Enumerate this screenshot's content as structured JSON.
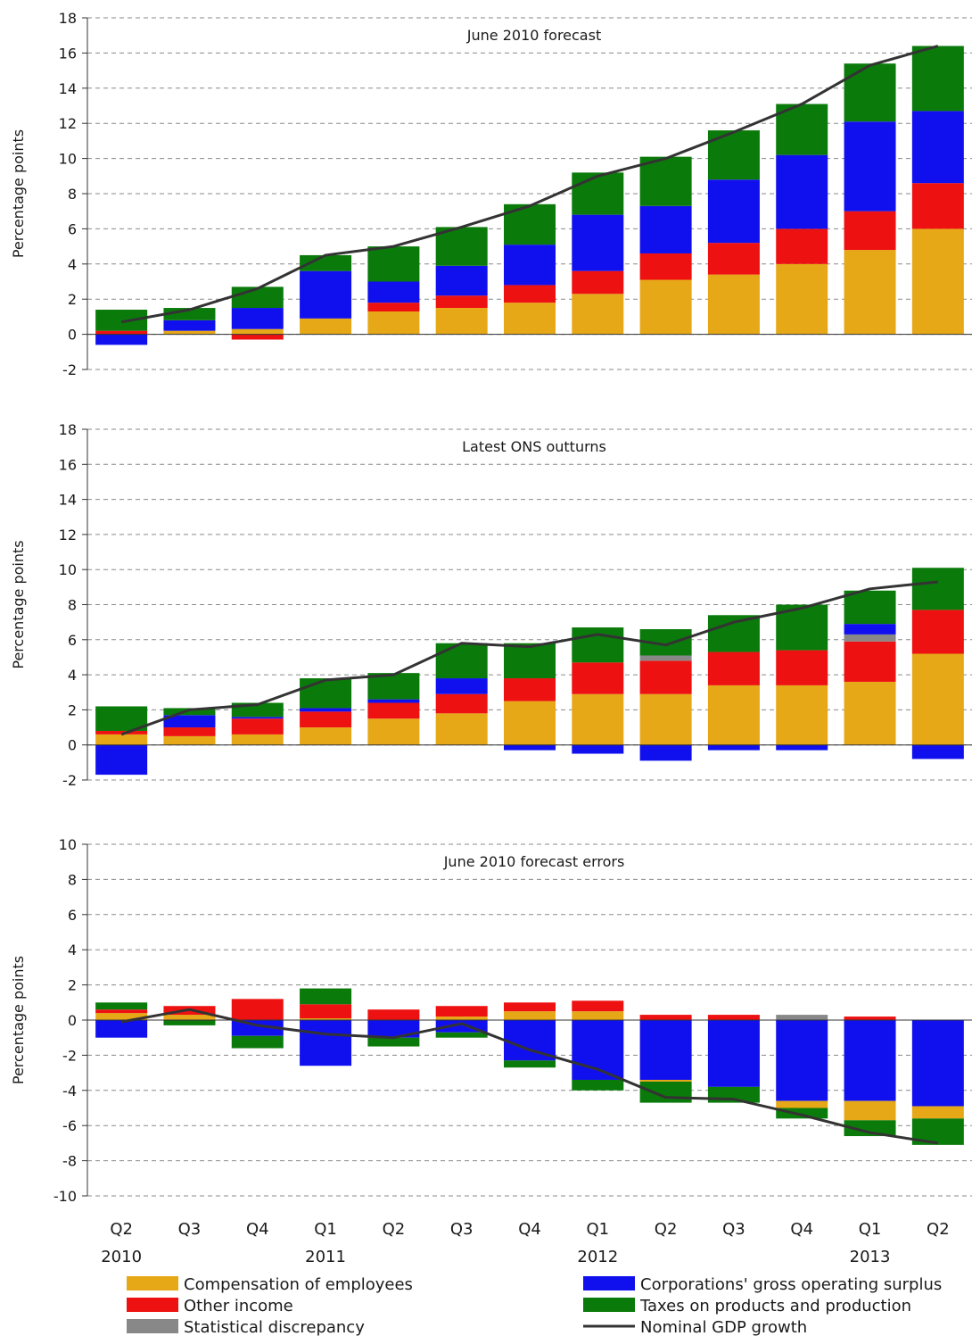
{
  "series_meta": [
    {
      "key": "comp",
      "name": "Compensation of employees",
      "color": "#E6A817"
    },
    {
      "key": "other",
      "name": "Other income",
      "color": "#EE1111"
    },
    {
      "key": "stat",
      "name": "Statistical discrepancy",
      "color": "#888888"
    },
    {
      "key": "corp",
      "name": "Corporations' gross operating surplus",
      "color": "#1010EE"
    },
    {
      "key": "tax",
      "name": "Taxes on products and production",
      "color": "#0A7A0A"
    },
    {
      "key": "gdp",
      "name": "Nominal GDP growth",
      "color": "#333333"
    }
  ],
  "chart_data": [
    {
      "type": "bar",
      "stacked": true,
      "title": "June 2010 forecast",
      "ylabel": "Percentage points",
      "ylim": [
        -2,
        18
      ],
      "yticks": [
        -2,
        0,
        2,
        4,
        6,
        8,
        10,
        12,
        14,
        16,
        18
      ],
      "categories": [
        "Q2 2010",
        "Q3 2010",
        "Q4 2010",
        "Q1 2011",
        "Q2 2011",
        "Q3 2011",
        "Q4 2011",
        "Q1 2012",
        "Q2 2012",
        "Q3 2012",
        "Q4 2012",
        "Q1 2013",
        "Q2 2013"
      ],
      "series": [
        {
          "name": "Compensation of employees",
          "values": [
            0.0,
            0.2,
            0.3,
            0.9,
            1.3,
            1.5,
            1.8,
            2.3,
            3.1,
            3.4,
            4.0,
            4.8,
            6.0
          ]
        },
        {
          "name": "Other income",
          "values": [
            0.2,
            0.0,
            -0.3,
            0.0,
            0.5,
            0.7,
            1.0,
            1.3,
            1.5,
            1.8,
            2.0,
            2.2,
            2.6
          ]
        },
        {
          "name": "Statistical discrepancy",
          "values": [
            0,
            0,
            0,
            0,
            0,
            0,
            0,
            0,
            0,
            0,
            0,
            0,
            0
          ]
        },
        {
          "name": "Corporations' gross operating surplus",
          "values": [
            -0.6,
            0.6,
            1.2,
            2.7,
            1.2,
            1.7,
            2.3,
            3.2,
            2.7,
            3.6,
            4.2,
            5.1,
            4.1
          ]
        },
        {
          "name": "Taxes on products and production",
          "values": [
            1.2,
            0.7,
            1.2,
            0.9,
            2.0,
            2.2,
            2.3,
            2.4,
            2.8,
            2.8,
            2.9,
            3.3,
            3.7
          ]
        }
      ],
      "line": {
        "name": "Nominal GDP growth",
        "values": [
          0.7,
          1.4,
          2.6,
          4.5,
          5.0,
          6.1,
          7.3,
          9.0,
          10.0,
          11.5,
          13.1,
          15.3,
          16.4
        ]
      }
    },
    {
      "type": "bar",
      "stacked": true,
      "title": "Latest ONS outturns",
      "ylabel": "Percentage points",
      "ylim": [
        -2,
        18
      ],
      "yticks": [
        -2,
        0,
        2,
        4,
        6,
        8,
        10,
        12,
        14,
        16,
        18
      ],
      "categories": [
        "Q2 2010",
        "Q3 2010",
        "Q4 2010",
        "Q1 2011",
        "Q2 2011",
        "Q3 2011",
        "Q4 2011",
        "Q1 2012",
        "Q2 2012",
        "Q3 2012",
        "Q4 2012",
        "Q1 2013",
        "Q2 2013"
      ],
      "series": [
        {
          "name": "Compensation of employees",
          "values": [
            0.6,
            0.5,
            0.6,
            1.0,
            1.5,
            1.8,
            2.5,
            2.9,
            2.9,
            3.4,
            3.4,
            3.6,
            5.2
          ]
        },
        {
          "name": "Other income",
          "values": [
            0.2,
            0.5,
            0.9,
            0.9,
            0.9,
            1.1,
            1.3,
            1.8,
            1.9,
            1.9,
            2.0,
            2.3,
            2.5
          ]
        },
        {
          "name": "Statistical discrepancy",
          "values": [
            0,
            0,
            0,
            0,
            0,
            0,
            0,
            0,
            0.3,
            0,
            0,
            0.4,
            0
          ]
        },
        {
          "name": "Corporations' gross operating surplus",
          "values": [
            -1.7,
            0.7,
            0.1,
            0.2,
            0.2,
            0.9,
            -0.3,
            -0.5,
            -0.9,
            -0.3,
            -0.3,
            0.6,
            -0.8
          ]
        },
        {
          "name": "Taxes on products and production",
          "values": [
            1.4,
            0.4,
            0.8,
            1.7,
            1.5,
            2.0,
            2.0,
            2.0,
            1.5,
            2.1,
            2.6,
            1.9,
            2.4
          ]
        }
      ],
      "line": {
        "name": "Nominal GDP growth",
        "values": [
          0.6,
          2.0,
          2.3,
          3.7,
          4.0,
          5.8,
          5.6,
          6.3,
          5.7,
          7.0,
          7.8,
          8.9,
          9.3
        ]
      }
    },
    {
      "type": "bar",
      "stacked": true,
      "title": "June 2010 forecast errors",
      "ylabel": "Percentage points",
      "ylim": [
        -10,
        10
      ],
      "yticks": [
        -10,
        -8,
        -6,
        -4,
        -2,
        0,
        2,
        4,
        6,
        8,
        10
      ],
      "categories": [
        "Q2 2010",
        "Q3 2010",
        "Q4 2010",
        "Q1 2011",
        "Q2 2011",
        "Q3 2011",
        "Q4 2011",
        "Q1 2012",
        "Q2 2012",
        "Q3 2012",
        "Q4 2012",
        "Q1 2013",
        "Q2 2013"
      ],
      "series": [
        {
          "name": "Compensation of employees",
          "values": [
            0.4,
            0.3,
            0.0,
            0.1,
            0.0,
            0.2,
            0.5,
            0.5,
            -0.1,
            0.0,
            -0.4,
            -1.1,
            -0.7
          ]
        },
        {
          "name": "Other income",
          "values": [
            0.2,
            0.5,
            1.2,
            0.8,
            0.6,
            0.6,
            0.5,
            0.6,
            0.3,
            0.3,
            0.0,
            0.2,
            0.0
          ]
        },
        {
          "name": "Statistical discrepancy",
          "values": [
            0,
            0,
            0,
            0,
            0,
            0,
            0,
            0,
            0,
            0,
            0.3,
            0,
            0
          ]
        },
        {
          "name": "Corporations' gross operating surplus",
          "values": [
            -1.0,
            0.0,
            -0.9,
            -2.6,
            -1.0,
            -0.7,
            -2.3,
            -3.4,
            -3.4,
            -3.8,
            -4.6,
            -4.6,
            -4.9
          ]
        },
        {
          "name": "Taxes on products and production",
          "values": [
            0.4,
            -0.3,
            -0.7,
            0.9,
            -0.5,
            -0.3,
            -0.4,
            -0.6,
            -1.2,
            -0.9,
            -0.6,
            -0.9,
            -1.5
          ]
        }
      ],
      "line": {
        "name": "Nominal GDP growth",
        "values": [
          -0.1,
          0.6,
          -0.3,
          -0.8,
          -1.0,
          -0.2,
          -1.7,
          -2.8,
          -4.4,
          -4.5,
          -5.4,
          -6.4,
          -7.0
        ]
      }
    }
  ],
  "x_axis": {
    "quarters": [
      "Q2",
      "Q3",
      "Q4",
      "Q1",
      "Q2",
      "Q3",
      "Q4",
      "Q1",
      "Q2",
      "Q3",
      "Q4",
      "Q1",
      "Q2"
    ],
    "years": [
      {
        "label": "2010",
        "index": 0
      },
      {
        "label": "2011",
        "index": 3
      },
      {
        "label": "2012",
        "index": 7
      },
      {
        "label": "2013",
        "index": 11
      }
    ]
  },
  "legend": {
    "placement": "bottom",
    "left": [
      "Compensation of employees",
      "Other income",
      "Statistical discrepancy"
    ],
    "right": [
      "Corporations' gross operating surplus",
      "Taxes on products and production",
      "Nominal GDP growth"
    ]
  }
}
